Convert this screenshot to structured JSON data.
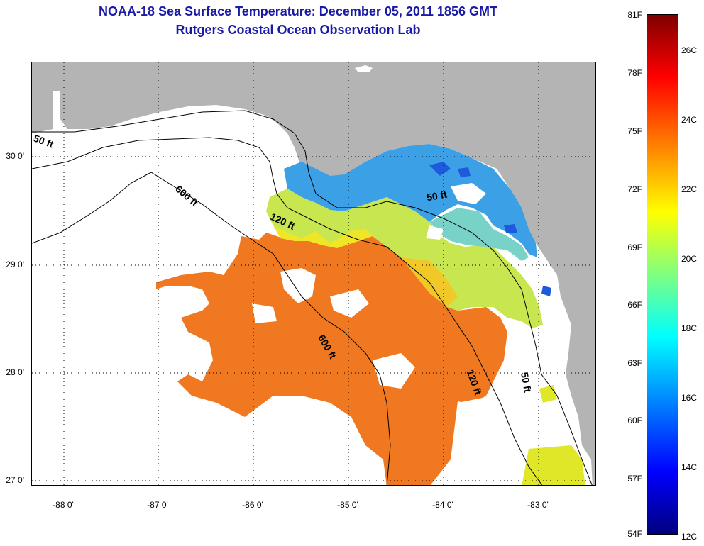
{
  "title": "NOAA-18 Sea Surface Temperature:  December 05, 2011 1856 GMT",
  "subtitle": "Rutgers Coastal Ocean Observation Lab",
  "map": {
    "lat_labels": [
      "30 0'",
      "29 0'",
      "28 0'",
      "27 0'"
    ],
    "lon_labels": [
      "-88 0'",
      "-87 0'",
      "-86 0'",
      "-85 0'",
      "-84 0'",
      "-83 0'"
    ],
    "contour_labels": [
      "50 ft",
      "600 ft",
      "120 ft",
      "50 ft",
      "600 ft",
      "120 ft",
      "50 ft"
    ],
    "land_color": "#b4b4b4",
    "cloud_color": "#ffffff"
  },
  "colorbar": {
    "fahrenheit_labels": [
      "81F",
      "78F",
      "75F",
      "72F",
      "69F",
      "66F",
      "63F",
      "60F",
      "57F",
      "54F"
    ],
    "celsius_labels": [
      "26C",
      "24C",
      "22C",
      "20C",
      "18C",
      "16C",
      "14C",
      "12C"
    ],
    "colormap": "jet",
    "range_c": [
      12,
      27
    ]
  }
}
